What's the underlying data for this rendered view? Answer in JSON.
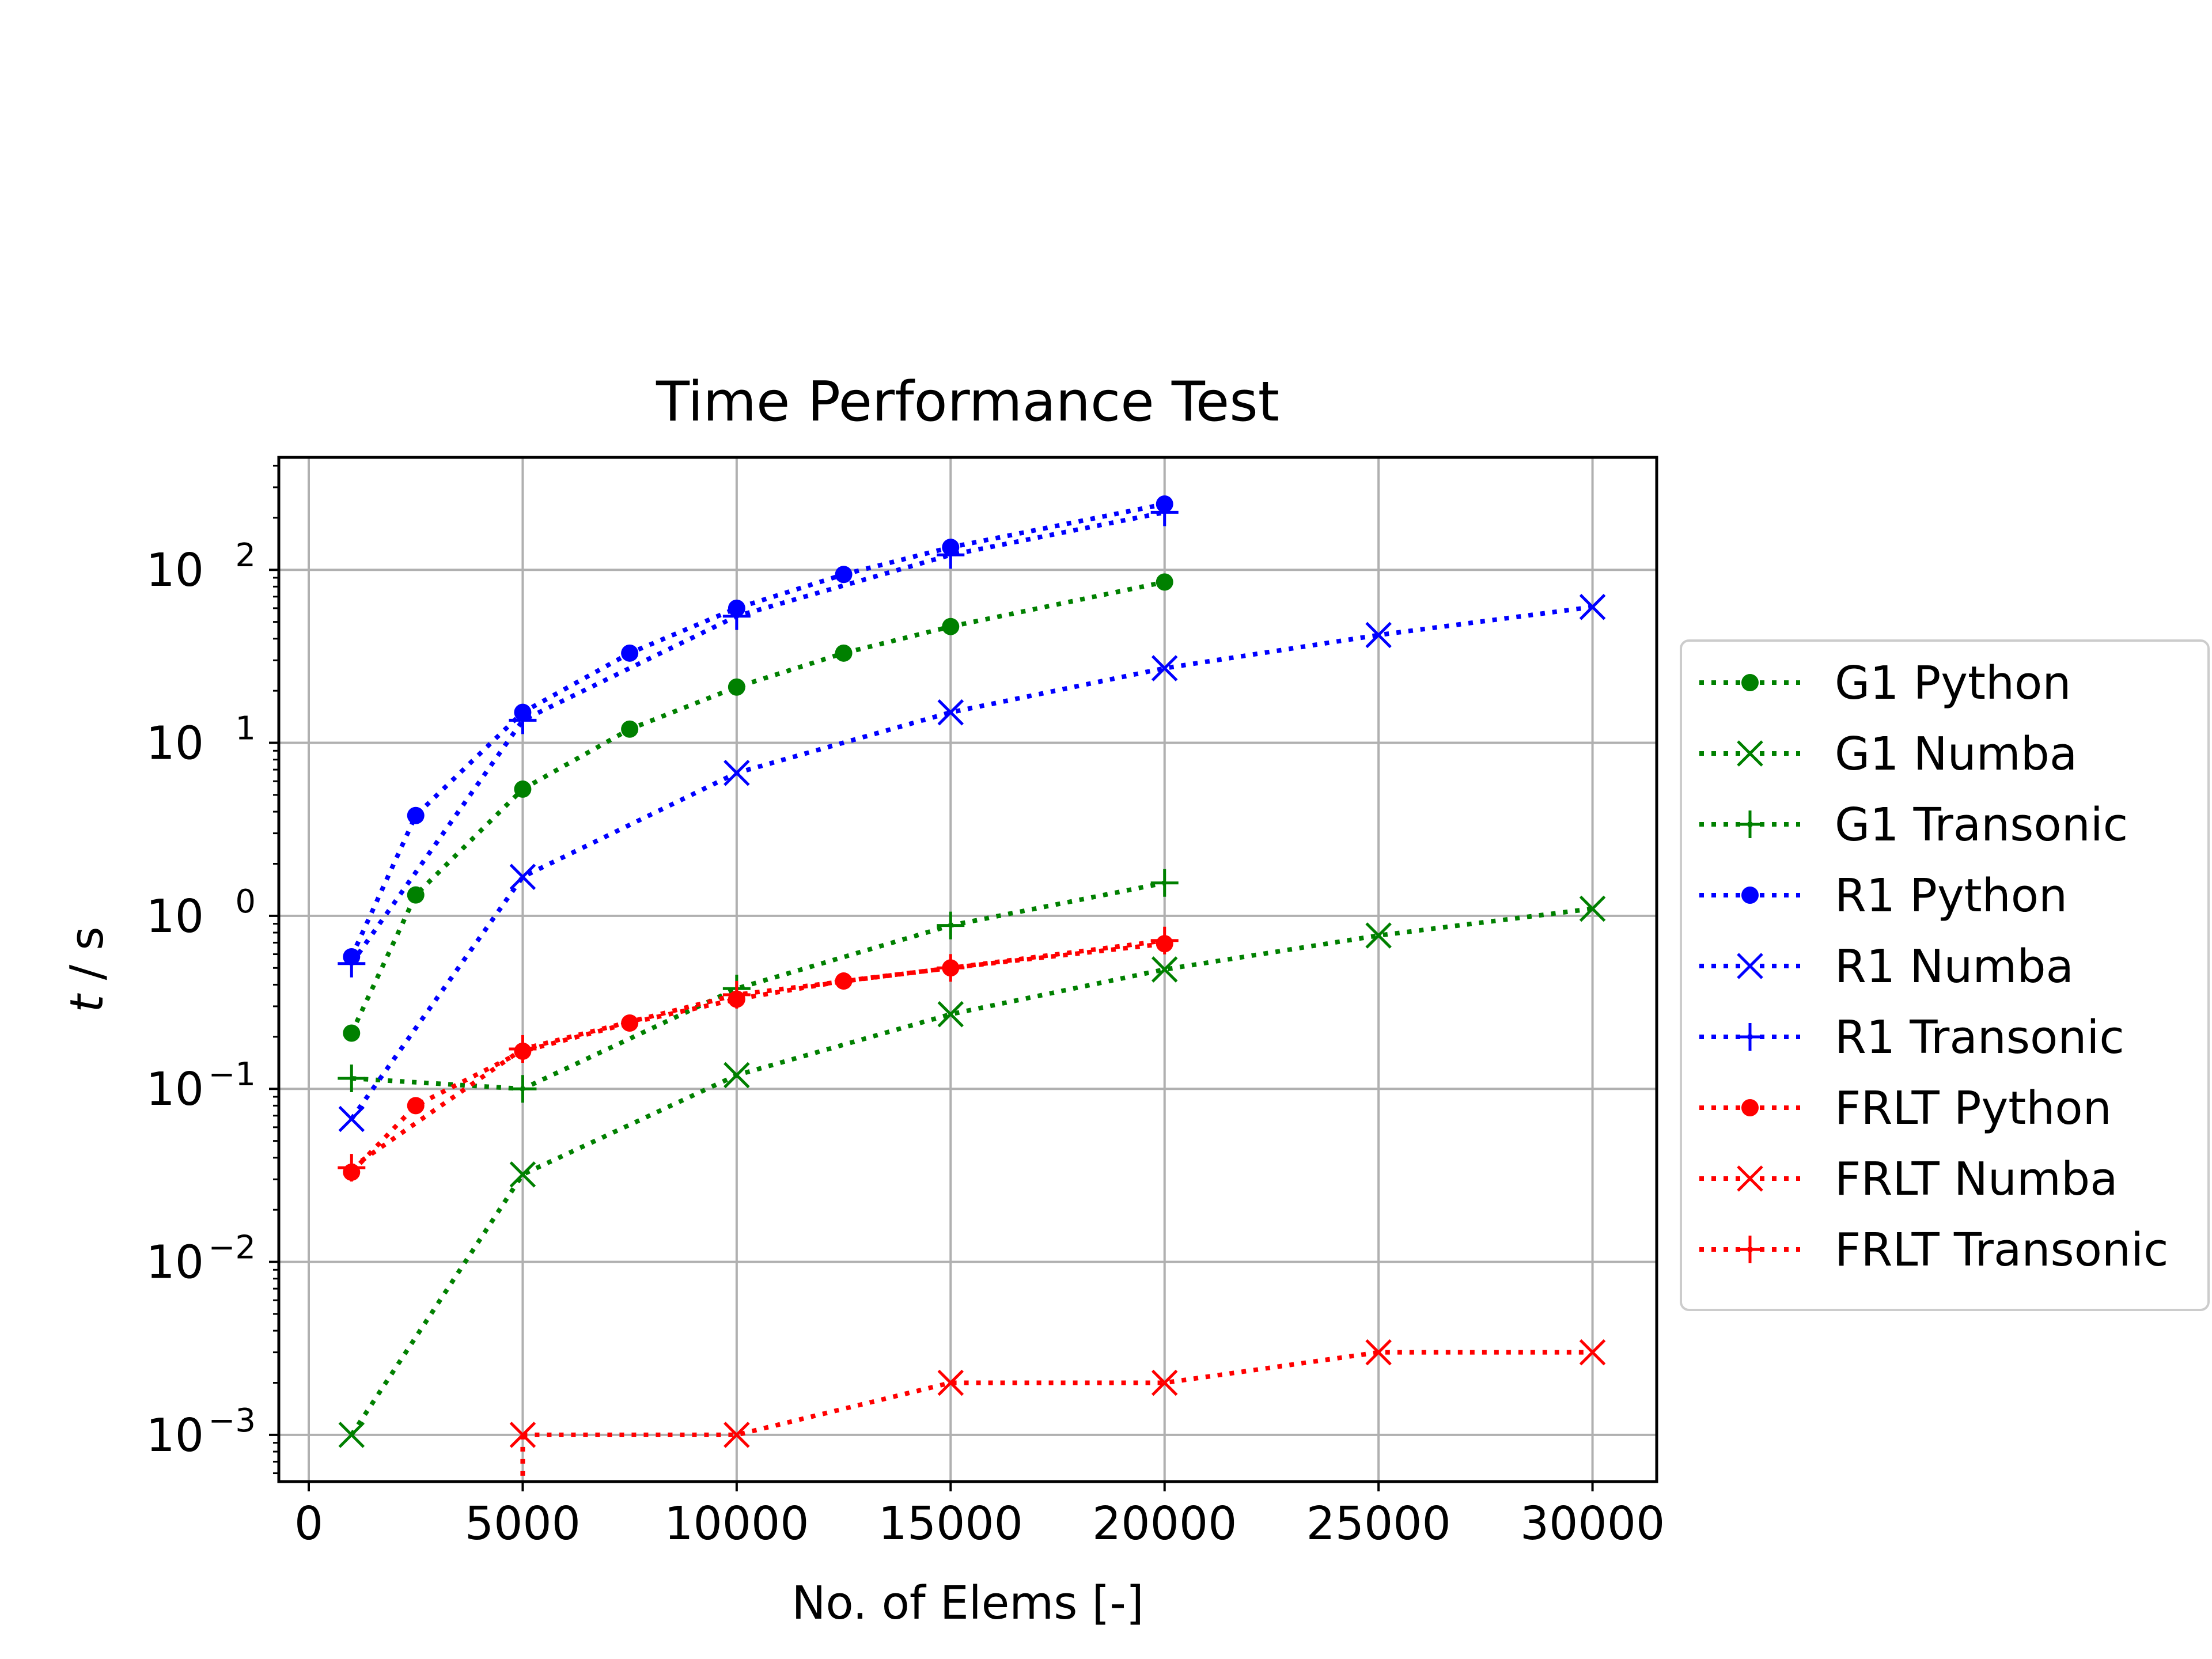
{
  "chart_data": {
    "type": "line",
    "title": "Time Performance Test",
    "xlabel": "No. of Elems [-]",
    "ylabel_italic": "t",
    "ylabel_rest": " / s",
    "xlim": [
      -700,
      31500
    ],
    "ylim_log10": [
      -3.27,
      2.65
    ],
    "y_scale": "log",
    "grid": true,
    "legend_position": "outside-right",
    "x_ticks": [
      {
        "value": 0,
        "label": "0"
      },
      {
        "value": 5000,
        "label": "5000"
      },
      {
        "value": 10000,
        "label": "10000"
      },
      {
        "value": 15000,
        "label": "15000"
      },
      {
        "value": 20000,
        "label": "20000"
      },
      {
        "value": 25000,
        "label": "25000"
      },
      {
        "value": 30000,
        "label": "30000"
      }
    ],
    "y_ticks": [
      {
        "exp": -3,
        "base": "10",
        "sup": "−3"
      },
      {
        "exp": -2,
        "base": "10",
        "sup": "−2"
      },
      {
        "exp": -1,
        "base": "10",
        "sup": "−1"
      },
      {
        "exp": 0,
        "base": "10",
        "sup": "0"
      },
      {
        "exp": 1,
        "base": "10",
        "sup": "1"
      },
      {
        "exp": 2,
        "base": "10",
        "sup": "2"
      }
    ],
    "series": [
      {
        "name": "G1 Python",
        "color": "#008000",
        "marker": "dot",
        "x": [
          1000,
          2500,
          5000,
          7500,
          10000,
          12500,
          15000,
          20000
        ],
        "y": [
          0.21,
          1.32,
          5.4,
          12.0,
          21.0,
          33.0,
          47.0,
          85.0
        ]
      },
      {
        "name": "G1 Numba",
        "color": "#008000",
        "marker": "x",
        "x": [
          1000,
          5000,
          10000,
          15000,
          20000,
          25000,
          30000
        ],
        "y": [
          0.001,
          0.032,
          0.12,
          0.27,
          0.49,
          0.77,
          1.1
        ]
      },
      {
        "name": "G1 Transonic",
        "color": "#008000",
        "marker": "plus",
        "x": [
          1000,
          5000,
          10000,
          15000,
          20000
        ],
        "y": [
          0.115,
          0.1,
          0.38,
          0.88,
          1.55
        ]
      },
      {
        "name": "R1 Python",
        "color": "#0000ff",
        "marker": "dot",
        "x": [
          1000,
          2500,
          5000,
          7500,
          10000,
          12500,
          15000,
          20000
        ],
        "y": [
          0.58,
          3.8,
          15.0,
          33.0,
          60.0,
          94.0,
          135.0,
          240.0
        ]
      },
      {
        "name": "R1 Numba",
        "color": "#0000ff",
        "marker": "x",
        "x": [
          1000,
          5000,
          10000,
          15000,
          20000,
          25000,
          30000
        ],
        "y": [
          0.067,
          1.68,
          6.7,
          15.0,
          27.0,
          42.0,
          61.0
        ]
      },
      {
        "name": "R1 Transonic",
        "color": "#0000ff",
        "marker": "plus",
        "x": [
          1000,
          5000,
          10000,
          15000,
          20000
        ],
        "y": [
          0.53,
          13.5,
          54.0,
          122.0,
          215.0
        ]
      },
      {
        "name": "FRLT Python",
        "color": "#ff0000",
        "marker": "dot",
        "x": [
          1000,
          2500,
          5000,
          7500,
          10000,
          12500,
          15000,
          20000
        ],
        "y": [
          0.033,
          0.08,
          0.165,
          0.24,
          0.33,
          0.42,
          0.5,
          0.69
        ]
      },
      {
        "name": "FRLT Numba",
        "color": "#ff0000",
        "marker": "x",
        "x": [
          5000,
          10000,
          15000,
          20000,
          25000,
          30000
        ],
        "y": [
          0.001,
          0.001,
          0.002,
          0.002,
          0.003,
          0.003
        ]
      },
      {
        "name": "FRLT Transonic",
        "color": "#ff0000",
        "marker": "plus",
        "x": [
          1000,
          5000,
          10000,
          15000,
          20000
        ],
        "y": [
          0.035,
          0.17,
          0.35,
          0.5,
          0.72
        ]
      }
    ]
  }
}
